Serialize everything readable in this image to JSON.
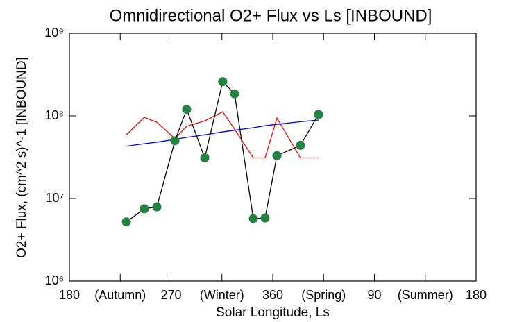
{
  "chart_data": {
    "type": "line",
    "title": "Omnidirectional O2+ Flux vs Ls [INBOUND]",
    "xlabel": "Solar Longitude, Ls",
    "ylabel": "O2+ Flux, (cm^2 s)^-1 [INBOUND]",
    "log_y": true,
    "xlim": [
      180,
      540
    ],
    "ylim": [
      1000000,
      1000000000
    ],
    "xticks": [
      180,
      {
        "value": 225,
        "label": "(Autumn)"
      },
      270,
      {
        "value": 315,
        "label": "(Winter)"
      },
      360,
      {
        "value": 405,
        "label": "(Spring)"
      },
      {
        "value": 450,
        "label": "90"
      },
      {
        "value": 495,
        "label": "(Summer)"
      },
      {
        "value": 540,
        "label": "180"
      }
    ],
    "yticks": [
      {
        "value": 1000000,
        "label": "10⁶"
      },
      {
        "value": 10000000,
        "label": "10⁷"
      },
      {
        "value": 100000000,
        "label": "10⁸"
      },
      {
        "value": 1000000000,
        "label": "10⁹"
      }
    ],
    "x": [
      230.4,
      246.3,
      257.4,
      273.4,
      283.8,
      299.8,
      315.7,
      326.2,
      342.8,
      353.2,
      363.7,
      384.5,
      400.5
    ],
    "series": [
      {
        "color": "#000000",
        "marker_color": "#23823f",
        "values": [
          5200000,
          7500000,
          7900000,
          50000000,
          120000000,
          31000000,
          260000000,
          185000000,
          5700000,
          5800000,
          33000000,
          44000000,
          104000000
        ]
      },
      {
        "color": "#ff0000",
        "values": [
          59000000,
          96000000,
          84000000,
          53000000,
          75000000,
          87000000,
          112000000,
          69000000,
          31000000,
          31000000,
          94000000,
          31000000,
          31000000
        ]
      },
      {
        "color": "#0000ff",
        "values": [
          43000000,
          46000000,
          48000000,
          52000000,
          55000000,
          59000000,
          64000000,
          67000000,
          72000000,
          76000000,
          79000000,
          85000000,
          89000000
        ]
      }
    ]
  }
}
